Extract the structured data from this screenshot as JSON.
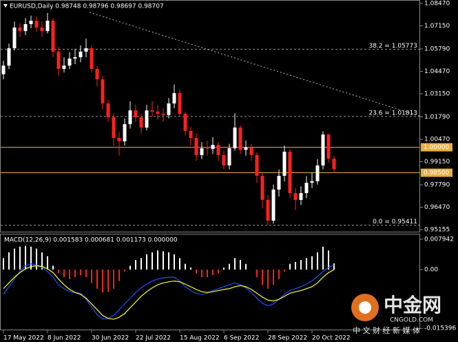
{
  "chart_data": [
    {
      "type": "candlestick",
      "title": "EURUSD,Daily 0.98748 0.98796 0.98697 0.98707",
      "categories": [
        "17 May 2022",
        null,
        null,
        null,
        null,
        null,
        null,
        null,
        "8 Jun 2022",
        null,
        null,
        null,
        null,
        null,
        null,
        null,
        "30 Jun 2022",
        null,
        null,
        null,
        null,
        null,
        null,
        null,
        "22 Jul 2022",
        null,
        null,
        null,
        null,
        null,
        null,
        null,
        "15 Aug 2022",
        null,
        null,
        null,
        null,
        null,
        null,
        null,
        "6 Sep 2022",
        null,
        null,
        null,
        null,
        null,
        null,
        null,
        "28 Sep 2022",
        null,
        null,
        null,
        null,
        null,
        null,
        null,
        "20 Oct 2022",
        null,
        null,
        null,
        null
      ],
      "open": [
        1.043,
        1.0481,
        1.0583,
        1.0705,
        1.0684,
        1.0725,
        1.0745,
        1.0705,
        1.0684,
        1.0745,
        1.0563,
        1.0461,
        1.0481,
        1.0522,
        1.053,
        1.0563,
        1.0583,
        1.0461,
        1.04,
        1.0258,
        1.0177,
        1.0055,
        1.0035,
        1.0136,
        1.0217,
        1.0177,
        1.0116,
        1.0217,
        1.021,
        1.0197,
        1.019,
        1.0258,
        1.0319,
        1.0197,
        1.0096,
        1.0055,
        0.9954,
        0.9994,
        0.999,
        1.0014,
        0.9954,
        0.9893,
        0.9994,
        1.0116,
        0.9985,
        0.9998,
        0.9954,
        0.9832,
        0.969,
        0.9568,
        0.9751,
        0.9832,
        0.9974,
        0.973,
        0.969,
        0.973,
        0.9791,
        0.98,
        0.9893,
        1.0075,
        0.9933
      ],
      "high": [
        1.051,
        1.061,
        1.074,
        1.073,
        1.076,
        1.0775,
        1.077,
        1.074,
        1.079,
        1.076,
        1.059,
        1.053,
        1.056,
        1.058,
        1.06,
        1.064,
        1.06,
        1.048,
        1.042,
        1.028,
        1.02,
        1.009,
        1.017,
        1.027,
        1.025,
        1.02,
        1.025,
        1.027,
        1.025,
        1.023,
        1.029,
        1.037,
        1.034,
        1.021,
        1.012,
        1.008,
        1.003,
        1.004,
        1.006,
        1.003,
        0.998,
        1.002,
        1.02,
        1.013,
        1.004,
        1.002,
        0.997,
        0.985,
        0.972,
        0.978,
        0.987,
        1.001,
        0.999,
        0.976,
        0.977,
        0.983,
        0.985,
        0.993,
        1.0094,
        1.008,
        0.995
      ],
      "low": [
        1.04,
        1.046,
        1.057,
        1.065,
        1.066,
        1.07,
        1.068,
        1.065,
        1.067,
        1.053,
        1.042,
        1.044,
        1.046,
        1.049,
        1.05,
        1.053,
        1.044,
        1.036,
        1.022,
        1.015,
        1.001,
        0.995,
        1.001,
        1.011,
        1.015,
        1.008,
        1.01,
        1.018,
        1.016,
        1.015,
        1.017,
        1.023,
        1.018,
        1.007,
        1.001,
        0.992,
        0.993,
        0.995,
        0.996,
        0.992,
        0.987,
        0.987,
        0.998,
        0.996,
        0.995,
        0.992,
        0.979,
        0.964,
        0.9541,
        0.955,
        0.971,
        0.98,
        0.97,
        0.963,
        0.966,
        0.97,
        0.976,
        0.978,
        0.987,
        0.991,
        0.985
      ],
      "close": [
        1.0481,
        1.0583,
        1.0705,
        1.0684,
        1.0725,
        1.0745,
        1.0705,
        1.0684,
        1.0745,
        1.0563,
        1.0461,
        1.0481,
        1.0522,
        1.053,
        1.0563,
        1.0583,
        1.0461,
        1.04,
        1.0258,
        1.0177,
        1.0055,
        1.0035,
        1.0136,
        1.0217,
        1.0177,
        1.0116,
        1.0217,
        1.021,
        1.0197,
        1.019,
        1.0258,
        1.0319,
        1.0197,
        1.0096,
        1.0055,
        0.9954,
        0.9994,
        0.999,
        1.0014,
        0.9954,
        0.9893,
        0.9994,
        1.0116,
        0.9985,
        0.9998,
        0.9954,
        0.9832,
        0.969,
        0.9568,
        0.9751,
        0.9832,
        0.9974,
        0.973,
        0.969,
        0.973,
        0.9791,
        0.98,
        0.9893,
        1.0075,
        0.9933,
        0.9871
      ],
      "up_color": "#ffffff",
      "down_color": "#ff2020",
      "ylim": [
        0.9503,
        1.0867
      ],
      "yticks": [
        {
          "value": 1.0847,
          "label": "1.08470"
        },
        {
          "value": 1.0715,
          "label": "1.07150"
        },
        {
          "value": 1.0579,
          "label": "1.05790"
        },
        {
          "value": 1.0447,
          "label": "1.04470"
        },
        {
          "value": 1.0315,
          "label": "1.03150"
        },
        {
          "value": 1.0179,
          "label": "1.01790"
        },
        {
          "value": 1.0047,
          "label": "1.00470"
        },
        {
          "value": 0.9915,
          "label": "0.99150"
        },
        {
          "value": 0.9779,
          "label": "0.97790"
        },
        {
          "value": 0.9647,
          "label": "0.96470"
        },
        0.95155
      ],
      "levels": [
        {
          "value": 1.0,
          "label": "1.00000",
          "color": "#e8b040"
        },
        {
          "value": 0.985,
          "label": "0.98500",
          "color": "#e8b040"
        }
      ],
      "fib_levels": [
        {
          "value": 1.05773,
          "label": "38.2 = 1.05773"
        },
        {
          "value": 1.01813,
          "label": "23.6 = 1.01813"
        },
        {
          "value": 0.95411,
          "label": "0.0 = 0.95411"
        }
      ]
    },
    {
      "type": "macd",
      "title": "MACD(12,26,9) 0.001583 0.000681 0.001173 0.000000",
      "histogram": [
        0.003,
        0.0045,
        0.0055,
        0.006,
        0.0062,
        0.006,
        0.0055,
        0.0045,
        0.0035,
        0.001,
        -0.001,
        -0.002,
        -0.0025,
        -0.002,
        -0.0015,
        -0.002,
        -0.0035,
        -0.005,
        -0.006,
        -0.0058,
        -0.005,
        -0.003,
        -0.0005,
        0.001,
        0.0025,
        0.003,
        0.004,
        0.0045,
        0.005,
        0.0048,
        0.0045,
        0.004,
        0.003,
        0.0015,
        0.0005,
        -0.001,
        -0.002,
        -0.002,
        -0.0015,
        -0.001,
        0.0005,
        0.0015,
        0.003,
        0.0025,
        0.0015,
        0.0,
        -0.002,
        -0.004,
        -0.005,
        -0.004,
        -0.0025,
        -0.0005,
        0.0015,
        0.002,
        0.0025,
        0.003,
        0.0035,
        0.0045,
        0.006,
        0.005,
        0.0016
      ],
      "up_color": "#ffffff",
      "down_color": "#ff2020",
      "lines": [
        {
          "color": "#2050ff",
          "values": [
            -0.0065,
            -0.0045,
            -0.0025,
            -0.0005,
            0.001,
            0.0015,
            0.0012,
            0.0005,
            -0.0005,
            -0.002,
            -0.004,
            -0.005,
            -0.0058,
            -0.006,
            -0.0062,
            -0.0078,
            -0.0098,
            -0.0118,
            -0.013,
            -0.0128,
            -0.012,
            -0.0105,
            -0.009,
            -0.0075,
            -0.006,
            -0.0048,
            -0.0038,
            -0.003,
            -0.0025,
            -0.0022,
            -0.002,
            -0.002,
            -0.003,
            -0.0045,
            -0.0055,
            -0.0062,
            -0.0065,
            -0.0062,
            -0.0055,
            -0.005,
            -0.0045,
            -0.004,
            -0.0035,
            -0.004,
            -0.0048,
            -0.006,
            -0.0075,
            -0.0088,
            -0.0095,
            -0.009,
            -0.0078,
            -0.0065,
            -0.0055,
            -0.005,
            -0.0045,
            -0.0038,
            -0.003,
            -0.0018,
            -0.0005,
            0.0005,
            0.0012
          ]
        },
        {
          "color": "#ffff40",
          "values": [
            -0.005,
            -0.0035,
            -0.002,
            -0.0008,
            0.0002,
            0.0008,
            0.001,
            0.0008,
            0.0002,
            -0.0008,
            -0.0025,
            -0.004,
            -0.0052,
            -0.006,
            -0.0065,
            -0.0075,
            -0.009,
            -0.0105,
            -0.012,
            -0.0128,
            -0.013,
            -0.0125,
            -0.0115,
            -0.01,
            -0.0085,
            -0.007,
            -0.0058,
            -0.0048,
            -0.004,
            -0.0035,
            -0.0032,
            -0.003,
            -0.0032,
            -0.0038,
            -0.0045,
            -0.0052,
            -0.0058,
            -0.006,
            -0.0058,
            -0.0055,
            -0.0052,
            -0.005,
            -0.0045,
            -0.0042,
            -0.0045,
            -0.0052,
            -0.0062,
            -0.0072,
            -0.008,
            -0.0082,
            -0.0078,
            -0.007,
            -0.0062,
            -0.0058,
            -0.0055,
            -0.005,
            -0.0045,
            -0.0035,
            -0.002,
            -0.0008,
            0.0
          ]
        }
      ],
      "ylim": [
        -0.0159,
        0.0092
      ],
      "yticks": [
        0.007942,
        {
          "value": 0,
          "label": "0.00"
        },
        -0.015396
      ]
    }
  ],
  "watermark": {
    "name": "中金网",
    "site": "CNGOLD.COM",
    "slogan": "中 文 财 经 新 媒 体"
  }
}
